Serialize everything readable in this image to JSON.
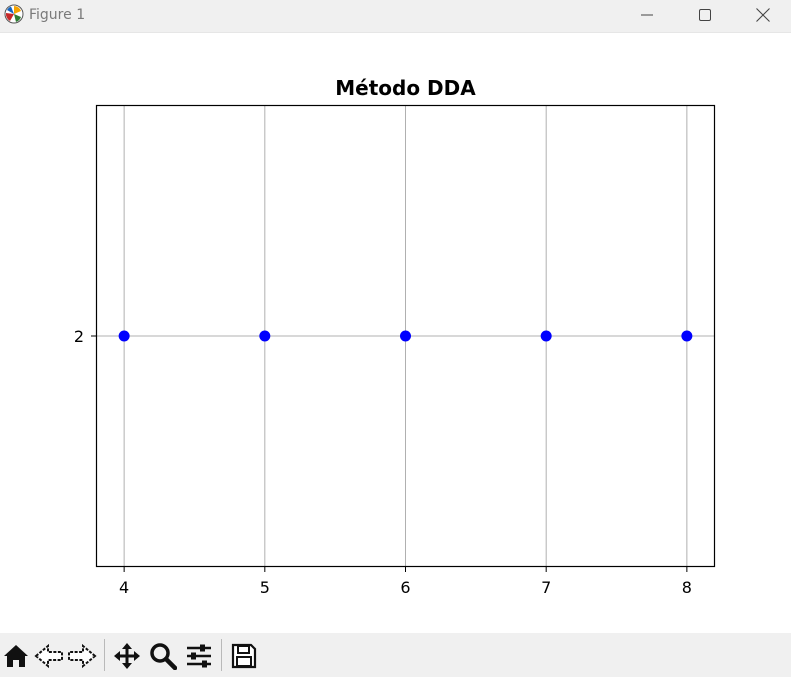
{
  "window": {
    "title": "Figure 1"
  },
  "toolbar": {
    "buttons": [
      "home-icon",
      "back-icon",
      "forward-icon",
      "pan-icon",
      "zoom-icon",
      "configure-subplots-icon",
      "save-icon"
    ]
  },
  "colors": {
    "marker": "#0000ff",
    "grid": "#b0b0b0",
    "axes": "#000000"
  },
  "chart_data": {
    "type": "scatter",
    "title": "Método DDA",
    "xlabel": "",
    "ylabel": "",
    "x": [
      4,
      5,
      6,
      7,
      8
    ],
    "y": [
      2,
      2,
      2,
      2,
      2
    ],
    "xlim": [
      3.8,
      8.2
    ],
    "ylim": [
      1,
      3
    ],
    "xticks": [
      "4",
      "5",
      "6",
      "7",
      "8"
    ],
    "yticks": [
      "2"
    ],
    "grid": true
  }
}
